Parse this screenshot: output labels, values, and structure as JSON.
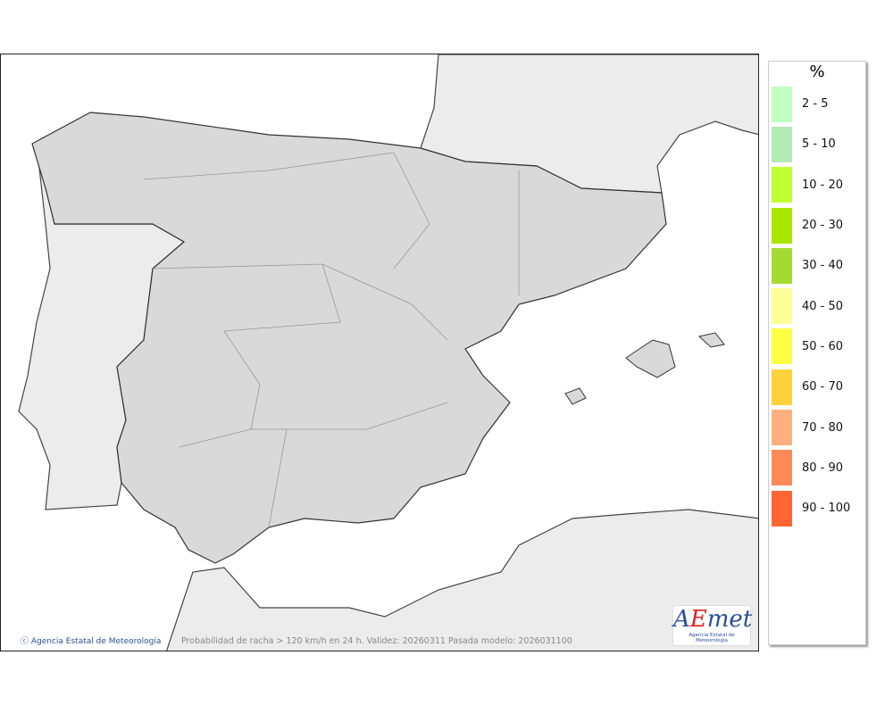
{
  "map": {
    "credit": "Agencia Estatal de Meteorología",
    "caption": "Probabilidad de racha > 120 km/h en 24 h. Validez: 20260311 Pasada modelo: 2026031100",
    "logo": {
      "text": "AEmet",
      "subtitle": "Agencia Estatal de Meteorología"
    },
    "colors": {
      "spain": "#d9d9d9",
      "other_land": "#ececec",
      "sea": "#ffffff",
      "border": "#444444"
    }
  },
  "legend": {
    "title": "%",
    "items": [
      {
        "label": "2 - 5",
        "color": "#c1ffc1"
      },
      {
        "label": "5 - 10",
        "color": "#b4eab4"
      },
      {
        "label": "10 - 20",
        "color": "#bfff33"
      },
      {
        "label": "20 - 30",
        "color": "#aae600"
      },
      {
        "label": "30 - 40",
        "color": "#a3db33"
      },
      {
        "label": "40 - 50",
        "color": "#ffff99"
      },
      {
        "label": "50 - 60",
        "color": "#ffff44"
      },
      {
        "label": "60 - 70",
        "color": "#ffd23c"
      },
      {
        "label": "70 - 80",
        "color": "#ffaf7f"
      },
      {
        "label": "80 - 90",
        "color": "#ff8a57"
      },
      {
        "label": "90 - 100",
        "color": "#ff6633"
      }
    ]
  }
}
